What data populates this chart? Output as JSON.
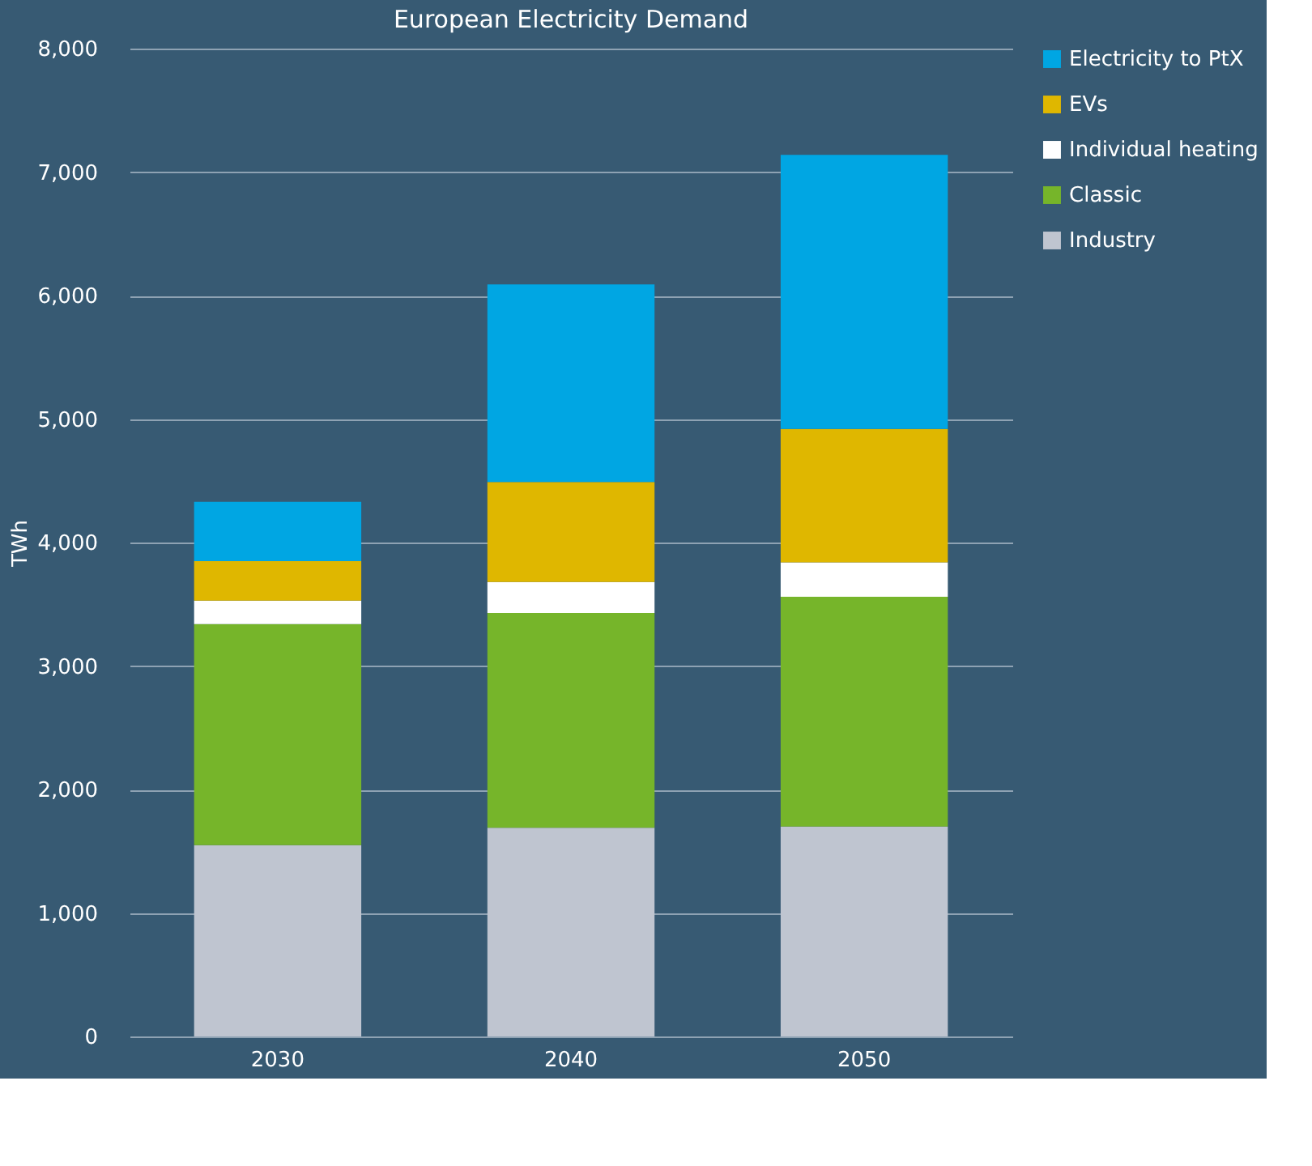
{
  "chart_data": {
    "type": "bar",
    "title": "European Electricity Demand",
    "ylabel": "TWh",
    "categories": [
      "2030",
      "2040",
      "2050"
    ],
    "stacked": true,
    "series": [
      {
        "name": "Industry",
        "color": "#bfc5d0",
        "values": [
          1550,
          1690,
          1700
        ]
      },
      {
        "name": "Classic",
        "color": "#76b52a",
        "values": [
          1790,
          1740,
          1860
        ]
      },
      {
        "name": "Individual heating",
        "color": "#ffffff",
        "values": [
          190,
          250,
          280
        ]
      },
      {
        "name": "EVs",
        "color": "#dfb700",
        "values": [
          320,
          810,
          1080
        ]
      },
      {
        "name": "Electricity to PtX",
        "color": "#00a6e3",
        "values": [
          480,
          1600,
          2220
        ]
      }
    ],
    "ylim": [
      0,
      8000
    ],
    "yticks": [
      0,
      {
        "value": 1000,
        "label": "1,000"
      },
      {
        "value": 2000,
        "label": "2,000"
      },
      {
        "value": 3000,
        "label": "3,000"
      },
      {
        "value": 4000,
        "label": "4,000"
      },
      {
        "value": 5000,
        "label": "5,000"
      },
      {
        "value": 6000,
        "label": "6,000"
      },
      {
        "value": 7000,
        "label": "7,000"
      },
      {
        "value": 8000,
        "label": "8,000"
      }
    ],
    "grid": "y",
    "legend": "right"
  }
}
